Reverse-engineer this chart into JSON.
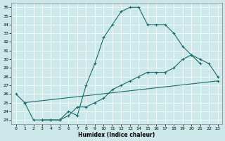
{
  "xlabel": "Humidex (Indice chaleur)",
  "bg_color": "#cce8e8",
  "line_color": "#1a6b6b",
  "grid_color": "#ffffff",
  "xlim": [
    -0.5,
    23.5
  ],
  "ylim": [
    22.5,
    36.5
  ],
  "yticks": [
    23,
    24,
    25,
    26,
    27,
    28,
    29,
    30,
    31,
    32,
    33,
    34,
    35,
    36
  ],
  "xticks": [
    0,
    1,
    2,
    3,
    4,
    5,
    6,
    7,
    8,
    9,
    10,
    11,
    12,
    13,
    14,
    15,
    16,
    17,
    18,
    19,
    20,
    21,
    22,
    23
  ],
  "line1_x": [
    0,
    1,
    2,
    3,
    4,
    5,
    6,
    7,
    8,
    9,
    10,
    11,
    12,
    13,
    14,
    15,
    16,
    17,
    18,
    19,
    20,
    21
  ],
  "line1_y": [
    26.0,
    25.0,
    23.0,
    23.0,
    23.0,
    23.0,
    24.0,
    23.5,
    27.0,
    29.5,
    32.5,
    34.0,
    35.5,
    36.0,
    36.0,
    34.0,
    34.0,
    34.0,
    33.0,
    31.5,
    30.5,
    29.5
  ],
  "line2_x": [
    1,
    23
  ],
  "line2_y": [
    25.0,
    27.5
  ],
  "line3_x": [
    3,
    4,
    5,
    6,
    7,
    8,
    9,
    10,
    11,
    12,
    13,
    14,
    15,
    16,
    17,
    18,
    19,
    20,
    21,
    22,
    23
  ],
  "line3_y": [
    23.0,
    23.0,
    23.0,
    23.5,
    24.5,
    24.5,
    25.0,
    25.5,
    26.5,
    27.0,
    27.5,
    28.0,
    28.5,
    28.5,
    28.5,
    29.0,
    30.0,
    30.5,
    30.0,
    29.5,
    28.0
  ]
}
